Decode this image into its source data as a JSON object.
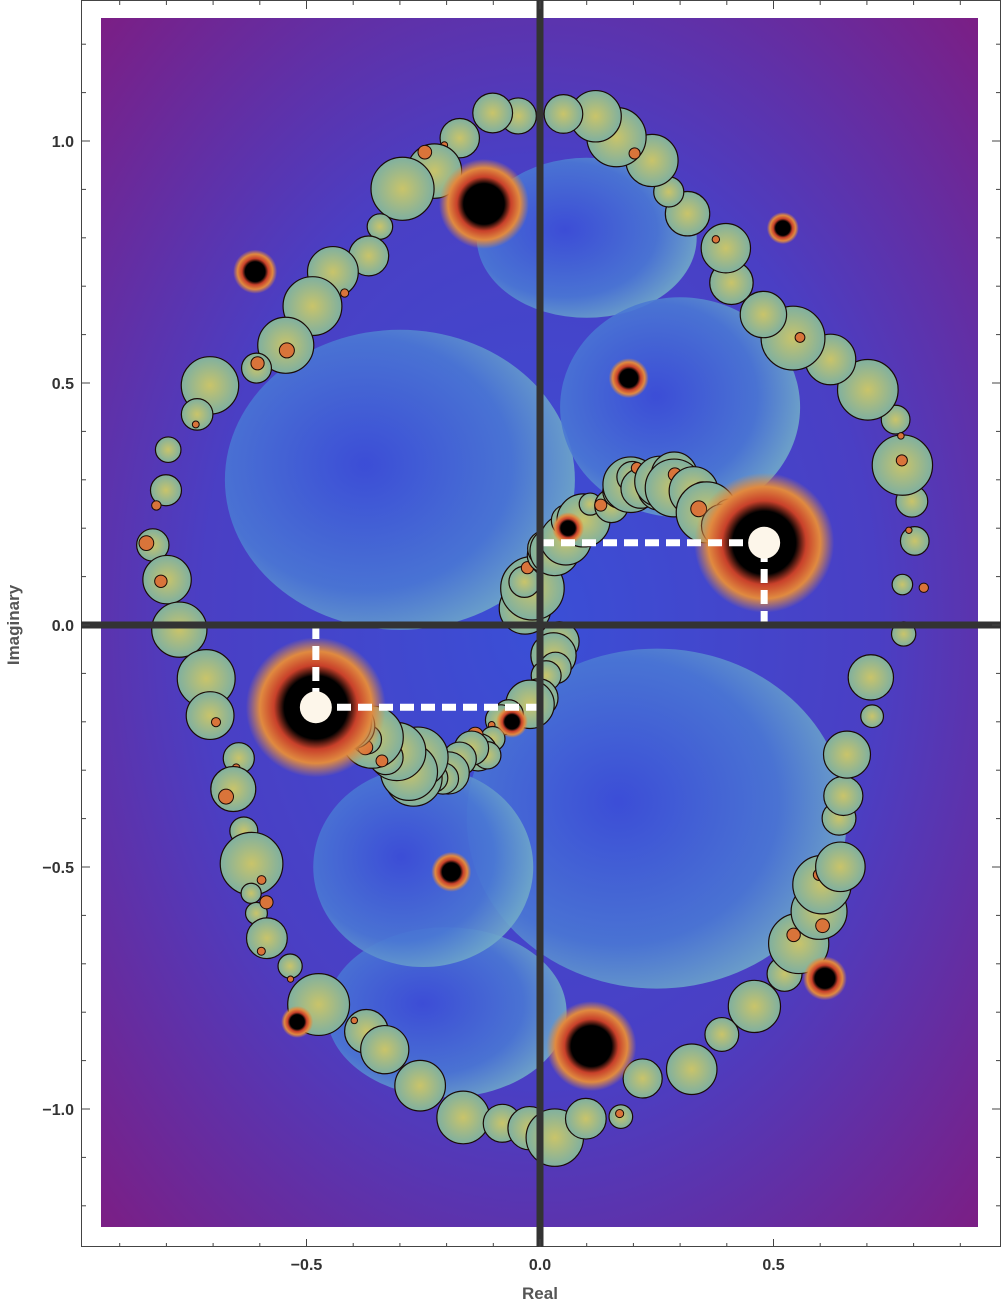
{
  "chart_data": {
    "type": "heatmap",
    "subject": "fractal escape-time image in the complex plane",
    "xlabel": "Real",
    "ylabel": "Imaginary",
    "xlim": [
      -0.98,
      0.94
    ],
    "ylim": [
      -1.25,
      1.25
    ],
    "x_ticks": [
      {
        "value": -0.5,
        "label": "−0.5"
      },
      {
        "value": 0.0,
        "label": "0.0"
      },
      {
        "value": 0.5,
        "label": "0.5"
      }
    ],
    "y_ticks": [
      {
        "value": 1.0,
        "label": "1.0"
      },
      {
        "value": 0.5,
        "label": "0.5"
      },
      {
        "value": 0.0,
        "label": "0.0"
      },
      {
        "value": -0.5,
        "label": "−0.5"
      },
      {
        "value": -1.0,
        "label": "−1.0"
      }
    ],
    "marked_points": [
      {
        "x": 0.48,
        "y": 0.17
      },
      {
        "x": -0.48,
        "y": -0.17
      }
    ],
    "colors": {
      "background_outer": "#7a1f86",
      "background_inner": "#3a4fd6",
      "basin_mid": "#6fa8c9",
      "fractal_green": "#a8c070",
      "fractal_orange": "#d9743a",
      "fractal_red": "#c8402a",
      "attractor_black": "#000000",
      "axis_dark": "#333333",
      "marker_fill": "#fdf6ea",
      "guide_dash": "#ffffff"
    }
  }
}
